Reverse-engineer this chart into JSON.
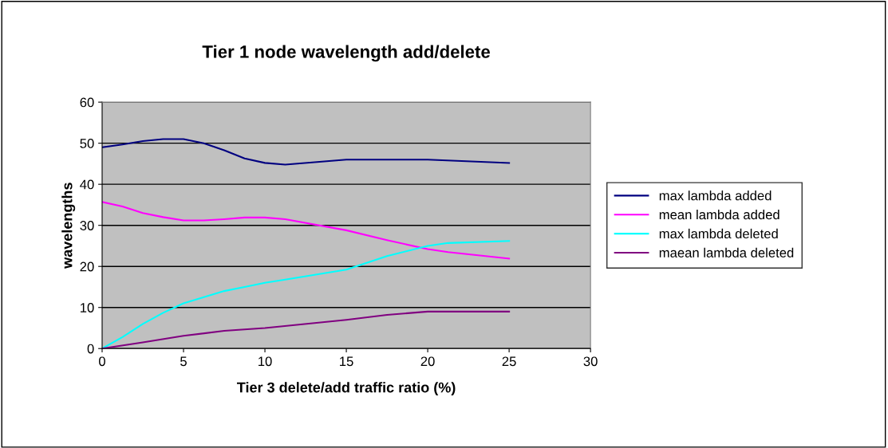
{
  "chart_data": {
    "type": "line",
    "title": "Tier 1 node wavelength add/delete",
    "xlabel": "Tier 3 delete/add traffic ratio (%)",
    "ylabel": "wavelengths",
    "xlim": [
      0,
      30
    ],
    "xticks": [
      0,
      5,
      10,
      15,
      20,
      25,
      30
    ],
    "ylim": [
      0,
      60
    ],
    "yticks": [
      0,
      10,
      20,
      30,
      40,
      50,
      60
    ],
    "grid": "y",
    "legend": "right",
    "marker": "none",
    "line_style": "solid",
    "series": [
      {
        "name": "max lambda added",
        "color": "#000080",
        "x": [
          0,
          1.25,
          2.5,
          3.75,
          5,
          6.25,
          7.5,
          8.75,
          10,
          11.25,
          15,
          20,
          25
        ],
        "values": [
          49,
          49.7,
          50.5,
          51,
          51,
          50,
          48.3,
          46.3,
          45.2,
          44.8,
          46,
          46,
          45.2
        ]
      },
      {
        "name": "mean lambda added",
        "color": "#ff00ff",
        "x": [
          0,
          1.25,
          2.5,
          3.75,
          5,
          6.25,
          7.5,
          8.75,
          10,
          11.25,
          15,
          17.5,
          20,
          21.25,
          25
        ],
        "values": [
          35.7,
          34.6,
          33,
          32,
          31.2,
          31.2,
          31.5,
          31.9,
          31.9,
          31.5,
          28.8,
          26.4,
          24.2,
          23.5,
          21.9
        ]
      },
      {
        "name": "max lambda deleted",
        "color": "#00ffff",
        "x": [
          0,
          1.25,
          2.5,
          3.75,
          5,
          6.25,
          7.5,
          8.75,
          10,
          11.25,
          15,
          17.5,
          20,
          21.25,
          25
        ],
        "values": [
          0,
          2.8,
          6,
          8.7,
          11,
          12.5,
          14,
          15,
          16,
          16.8,
          19.2,
          22.5,
          25,
          25.7,
          26.2
        ]
      },
      {
        "name": "maean lambda deleted",
        "color": "#800080",
        "x": [
          0,
          2.5,
          5,
          7.5,
          10,
          15,
          17.5,
          20,
          25
        ],
        "values": [
          0,
          1.5,
          3.1,
          4.3,
          5,
          7,
          8.2,
          9,
          9
        ]
      }
    ]
  }
}
